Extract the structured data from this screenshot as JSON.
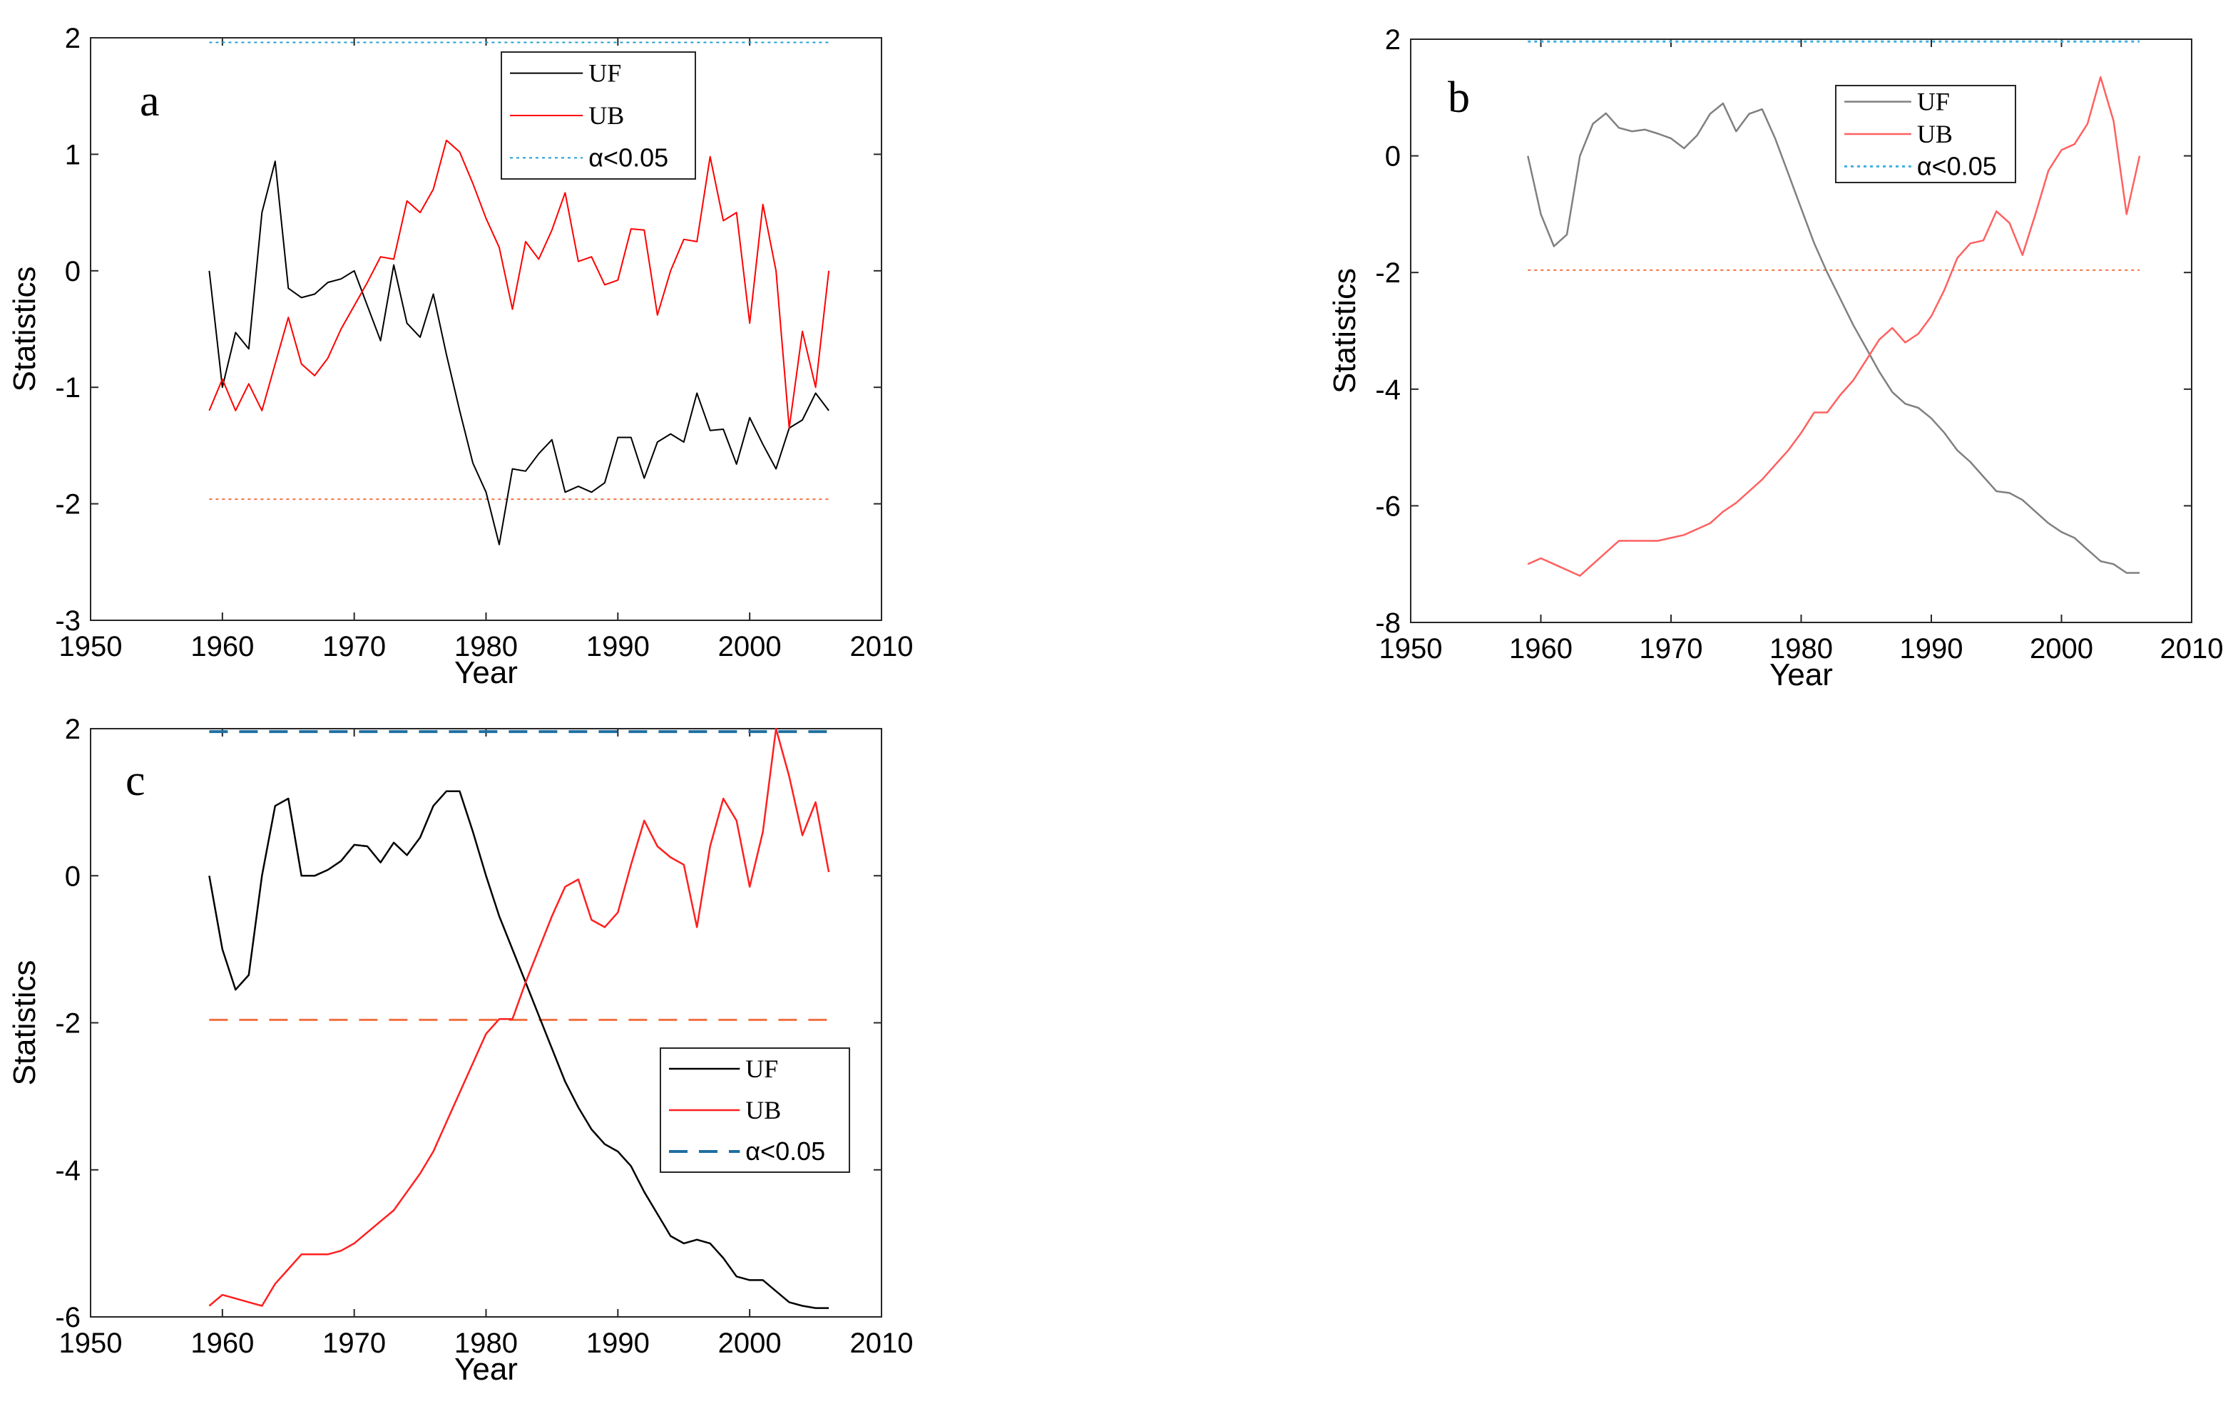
{
  "chart_data": [
    {
      "panel": "a",
      "type": "line",
      "xlabel": "Year",
      "ylabel": "Statistics",
      "xlim": [
        1950,
        2010
      ],
      "ylim": [
        -3,
        2
      ],
      "xticks": [
        1950,
        1960,
        1970,
        1980,
        1990,
        2000,
        2010
      ],
      "yticks": [
        -3,
        -2,
        -1,
        0,
        1,
        2
      ],
      "x": [
        1959,
        1960,
        1961,
        1962,
        1963,
        1964,
        1965,
        1966,
        1967,
        1968,
        1969,
        1970,
        1971,
        1972,
        1973,
        1974,
        1975,
        1976,
        1977,
        1978,
        1979,
        1980,
        1981,
        1982,
        1983,
        1984,
        1985,
        1986,
        1987,
        1988,
        1989,
        1990,
        1991,
        1992,
        1993,
        1994,
        1995,
        1996,
        1997,
        1998,
        1999,
        2000,
        2001,
        2002,
        2003,
        2004,
        2005,
        2006
      ],
      "series": [
        {
          "name": "UF",
          "color": "#000000",
          "dash": "solid",
          "width": 2,
          "values": [
            0.0,
            -1.0,
            -0.53,
            -0.67,
            0.5,
            0.94,
            -0.15,
            -0.23,
            -0.2,
            -0.1,
            -0.07,
            0.0,
            -0.3,
            -0.6,
            0.05,
            -0.45,
            -0.57,
            -0.2,
            -0.72,
            -1.2,
            -1.65,
            -1.9,
            -2.35,
            -1.7,
            -1.72,
            -1.57,
            -1.45,
            -1.9,
            -1.85,
            -1.9,
            -1.82,
            -1.43,
            -1.43,
            -1.78,
            -1.47,
            -1.4,
            -1.47,
            -1.05,
            -1.37,
            -1.36,
            -1.66,
            -1.26,
            -1.49,
            -1.7,
            -1.35,
            -1.28,
            -1.05,
            -1.2
          ]
        },
        {
          "name": "UB",
          "color": "#ff0000",
          "dash": "solid",
          "width": 2,
          "values": [
            -1.2,
            -0.93,
            -1.2,
            -0.97,
            -1.2,
            -0.8,
            -0.4,
            -0.8,
            -0.9,
            -0.75,
            -0.5,
            -0.3,
            -0.1,
            0.12,
            0.1,
            0.6,
            0.5,
            0.7,
            1.12,
            1.02,
            0.75,
            0.45,
            0.2,
            -0.33,
            0.25,
            0.1,
            0.35,
            0.67,
            0.08,
            0.12,
            -0.12,
            -0.08,
            0.36,
            0.35,
            -0.38,
            0.0,
            0.27,
            0.25,
            0.98,
            0.43,
            0.5,
            -0.45,
            0.57,
            0.0,
            -1.35,
            -0.52,
            -1.0,
            0.0
          ]
        },
        {
          "name": "α<0.05",
          "color": "#1f9fcf",
          "dash": "dotted",
          "width": 2,
          "values": [
            1.96,
            1.96
          ],
          "x": [
            1959,
            2006
          ]
        },
        {
          "name": "",
          "color": "#f07040",
          "dash": "dotted",
          "width": 2,
          "values": [
            -1.96,
            -1.96
          ],
          "x": [
            1959,
            2006
          ]
        }
      ],
      "legend": [
        "UF",
        "UB",
        "α<0.05"
      ],
      "legend_position": "top-center"
    },
    {
      "panel": "b",
      "type": "line",
      "xlabel": "Year",
      "ylabel": "Statistics",
      "xlim": [
        1950,
        2010
      ],
      "ylim": [
        -8,
        2
      ],
      "xticks": [
        1950,
        1960,
        1970,
        1980,
        1990,
        2000,
        2010
      ],
      "yticks": [
        -8,
        -6,
        -4,
        -2,
        0,
        2
      ],
      "x": [
        1959,
        1960,
        1961,
        1962,
        1963,
        1964,
        1965,
        1966,
        1967,
        1968,
        1969,
        1970,
        1971,
        1972,
        1973,
        1974,
        1975,
        1976,
        1977,
        1978,
        1979,
        1980,
        1981,
        1982,
        1983,
        1984,
        1985,
        1986,
        1987,
        1988,
        1989,
        1990,
        1991,
        1992,
        1993,
        1994,
        1995,
        1996,
        1997,
        1998,
        1999,
        2000,
        2001,
        2002,
        2003,
        2004,
        2005,
        2006
      ],
      "series": [
        {
          "name": "UF",
          "color": "#808080",
          "dash": "solid",
          "width": 2.5,
          "values": [
            0.0,
            -1.0,
            -1.55,
            -1.35,
            0.0,
            0.55,
            0.73,
            0.48,
            0.42,
            0.45,
            0.38,
            0.3,
            0.13,
            0.35,
            0.72,
            0.9,
            0.42,
            0.72,
            0.8,
            0.3,
            -0.3,
            -0.9,
            -1.5,
            -2.0,
            -2.45,
            -2.9,
            -3.3,
            -3.7,
            -4.05,
            -4.25,
            -4.32,
            -4.5,
            -4.75,
            -5.05,
            -5.25,
            -5.5,
            -5.75,
            -5.78,
            -5.9,
            -6.1,
            -6.3,
            -6.45,
            -6.55,
            -6.75,
            -6.95,
            -7.0,
            -7.15,
            -7.15
          ]
        },
        {
          "name": "UB",
          "color": "#ff6060",
          "dash": "solid",
          "width": 2.5,
          "values": [
            -7.0,
            -6.9,
            -7.0,
            -7.1,
            -7.2,
            -7.0,
            -6.8,
            -6.6,
            -6.6,
            -6.6,
            -6.6,
            -6.55,
            -6.5,
            -6.4,
            -6.3,
            -6.1,
            -5.95,
            -5.75,
            -5.55,
            -5.3,
            -5.05,
            -4.75,
            -4.4,
            -4.4,
            -4.1,
            -3.85,
            -3.5,
            -3.15,
            -2.95,
            -3.2,
            -3.05,
            -2.75,
            -2.3,
            -1.75,
            -1.5,
            -1.45,
            -0.95,
            -1.15,
            -1.7,
            -1.0,
            -0.25,
            0.1,
            0.2,
            0.55,
            1.35,
            0.6,
            -1.0,
            0.0
          ]
        },
        {
          "name": "α<0.05",
          "color": "#3fb0e0",
          "dash": "dotted",
          "width": 3,
          "values": [
            1.96,
            1.96
          ],
          "x": [
            1959,
            2006
          ]
        },
        {
          "name": "",
          "color": "#f07040",
          "dash": "dotted",
          "width": 2,
          "values": [
            -1.96,
            -1.96
          ],
          "x": [
            1959,
            2006
          ]
        }
      ],
      "legend": [
        "UF",
        "UB",
        "α<0.05"
      ],
      "legend_position": "top-right"
    },
    {
      "panel": "c",
      "type": "line",
      "xlabel": "Year",
      "ylabel": "Statistics",
      "xlim": [
        1950,
        2010
      ],
      "ylim": [
        -6,
        2
      ],
      "xticks": [
        1950,
        1960,
        1970,
        1980,
        1990,
        2000,
        2010
      ],
      "yticks": [
        -6,
        -4,
        -2,
        0,
        2
      ],
      "x": [
        1959,
        1960,
        1961,
        1962,
        1963,
        1964,
        1965,
        1966,
        1967,
        1968,
        1969,
        1970,
        1971,
        1972,
        1973,
        1974,
        1975,
        1976,
        1977,
        1978,
        1979,
        1980,
        1981,
        1982,
        1983,
        1984,
        1985,
        1986,
        1987,
        1988,
        1989,
        1990,
        1991,
        1992,
        1993,
        1994,
        1995,
        1996,
        1997,
        1998,
        1999,
        2000,
        2001,
        2002,
        2003,
        2004,
        2005,
        2006
      ],
      "series": [
        {
          "name": "UF",
          "color": "#000000",
          "dash": "solid",
          "width": 2.5,
          "values": [
            0.0,
            -1.0,
            -1.55,
            -1.35,
            0.0,
            0.95,
            1.05,
            0.0,
            0.0,
            0.08,
            0.2,
            0.42,
            0.4,
            0.18,
            0.45,
            0.28,
            0.52,
            0.95,
            1.15,
            1.15,
            0.6,
            0.0,
            -0.55,
            -1.0,
            -1.45,
            -1.9,
            -2.35,
            -2.8,
            -3.15,
            -3.45,
            -3.65,
            -3.75,
            -3.95,
            -4.3,
            -4.6,
            -4.9,
            -5.0,
            -4.95,
            -5.0,
            -5.2,
            -5.45,
            -5.5,
            -5.5,
            -5.65,
            -5.8,
            -5.85,
            -5.88,
            -5.88
          ]
        },
        {
          "name": "UB",
          "color": "#ff2020",
          "dash": "solid",
          "width": 2.5,
          "values": [
            -5.85,
            -5.7,
            -5.75,
            -5.8,
            -5.85,
            -5.55,
            -5.35,
            -5.15,
            -5.15,
            -5.15,
            -5.1,
            -5.0,
            -4.85,
            -4.7,
            -4.55,
            -4.3,
            -4.05,
            -3.75,
            -3.35,
            -2.95,
            -2.55,
            -2.15,
            -1.95,
            -1.95,
            -1.45,
            -1.0,
            -0.55,
            -0.15,
            -0.05,
            -0.6,
            -0.7,
            -0.5,
            0.15,
            0.75,
            0.4,
            0.25,
            0.15,
            -0.7,
            0.4,
            1.05,
            0.75,
            -0.15,
            0.6,
            2.0,
            1.35,
            0.55,
            1.0,
            0.05
          ]
        },
        {
          "name": "α<0.05",
          "color": "#1f6fa0",
          "dash": "dashed",
          "width": 4,
          "values": [
            1.96,
            1.96
          ],
          "x": [
            1959,
            2006
          ]
        },
        {
          "name": "",
          "color": "#f07040",
          "dash": "dashed",
          "width": 3,
          "values": [
            -1.96,
            -1.96
          ],
          "x": [
            1959,
            2006
          ]
        }
      ],
      "legend": [
        "UF",
        "UB",
        "α<0.05"
      ],
      "legend_position": "middle-right"
    }
  ]
}
